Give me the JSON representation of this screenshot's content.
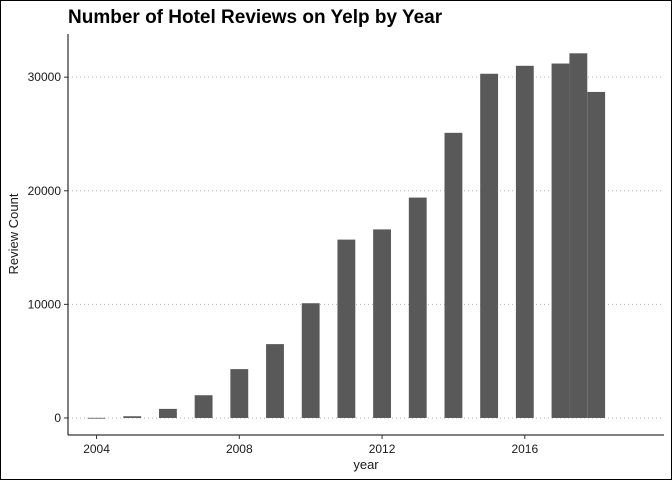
{
  "chart_data": {
    "type": "bar",
    "title": "Number of Hotel Reviews on Yelp by Year",
    "xlabel": "year",
    "ylabel": "Review Count",
    "x_ticks": [
      2004,
      2008,
      2012,
      2016
    ],
    "y_ticks": [
      0,
      10000,
      20000,
      30000
    ],
    "xlim": [
      2003.2,
      2019.9
    ],
    "ylim": [
      -1500,
      33800
    ],
    "grid": "horizontal-dotted",
    "legend": "none",
    "bar_color": "#595959",
    "x": [
      2004,
      2005,
      2006,
      2007,
      2008,
      2009,
      2010,
      2011,
      2012,
      2013,
      2014,
      2015,
      2016,
      2017,
      2017.5,
      2018
    ],
    "values": [
      10,
      150,
      800,
      2000,
      4300,
      6500,
      10100,
      15700,
      16600,
      19400,
      25100,
      30300,
      31000,
      31200,
      32100,
      28700
    ]
  }
}
